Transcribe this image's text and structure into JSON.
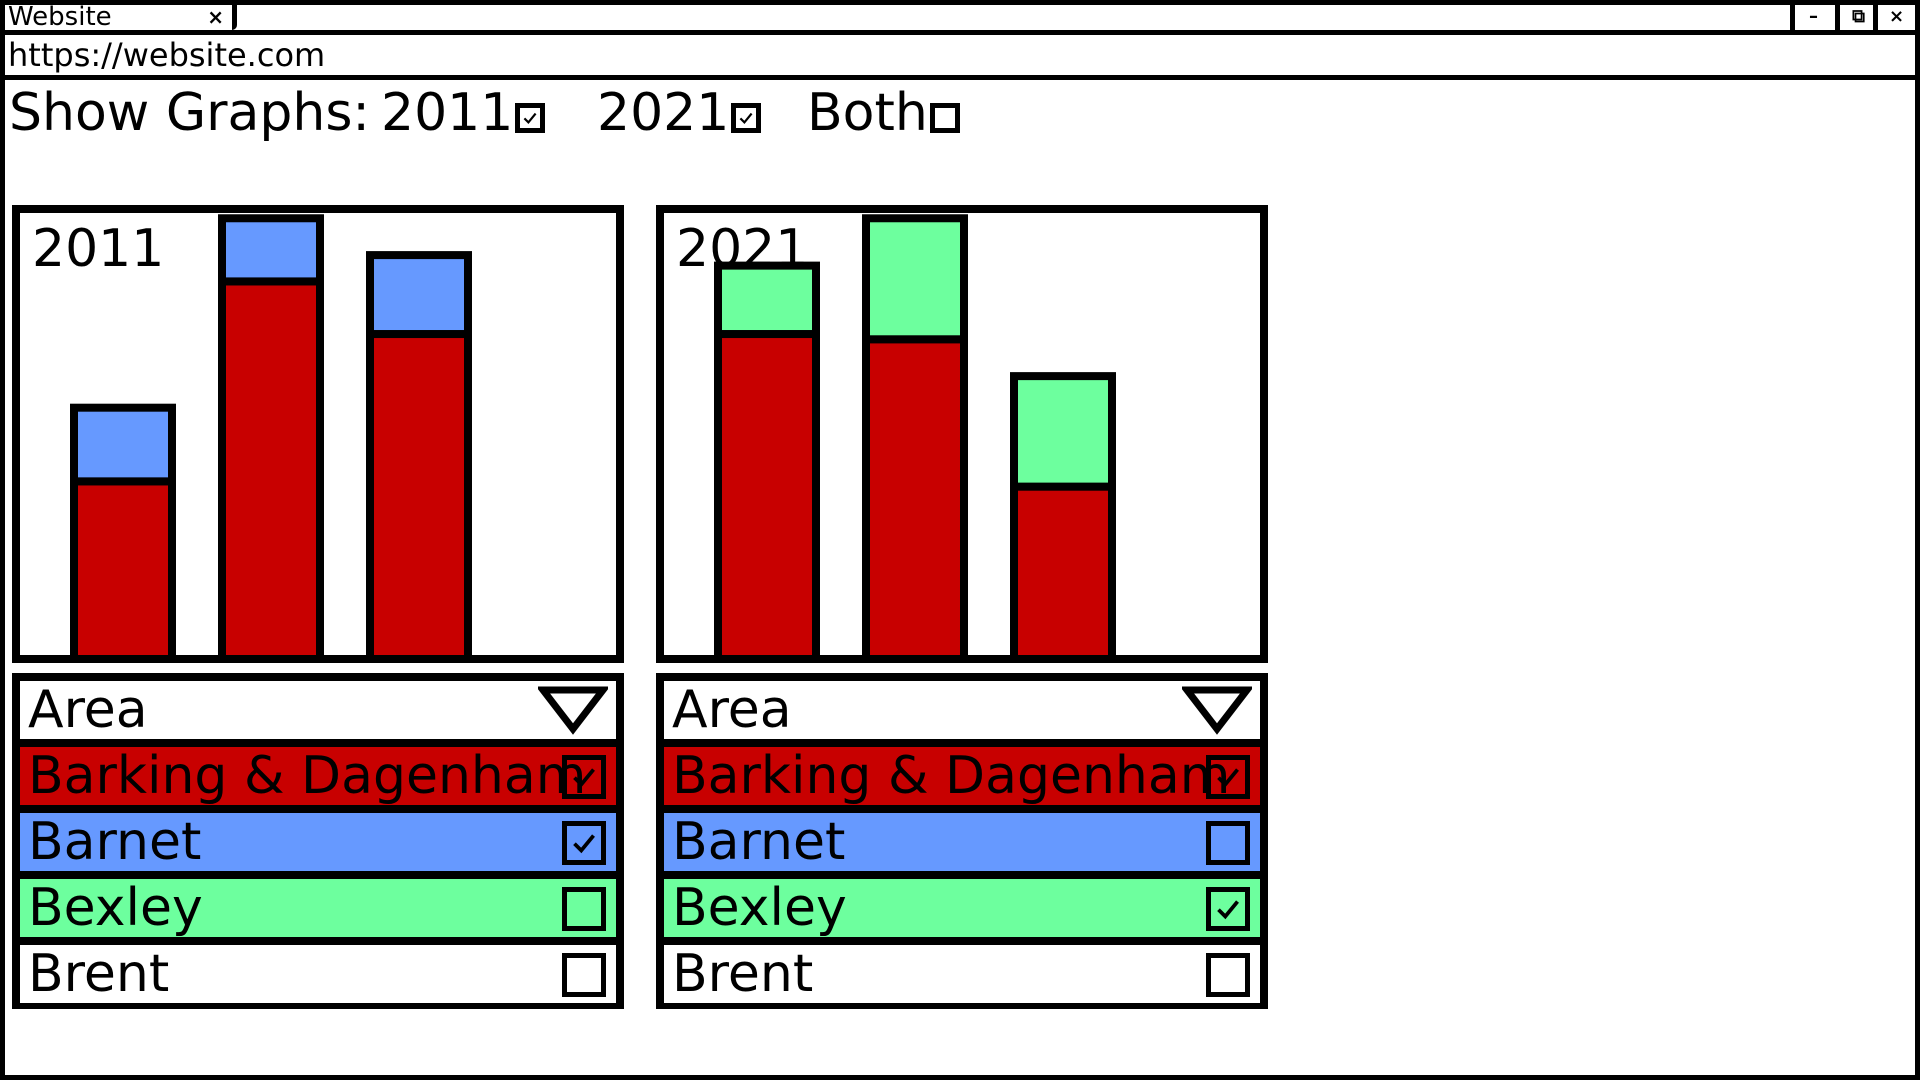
{
  "browser": {
    "tab_title": "Website",
    "tab_close": "×",
    "url": "https://website.com",
    "win_minimize": "–",
    "win_restore": "⧉",
    "win_close": "×"
  },
  "show_graphs": {
    "label": "Show Graphs:",
    "options": [
      {
        "label": "2011",
        "checked": true
      },
      {
        "label": "2021",
        "checked": true
      },
      {
        "label": "Both",
        "checked": false
      }
    ]
  },
  "colors": {
    "barking": "#c80000",
    "barnet": "#6699ff",
    "bexley": "#6dff9e",
    "brent": "#ffffff"
  },
  "panels": [
    {
      "title": "2011",
      "dropdown_label": "Area",
      "areas": [
        {
          "name": "Barking & Dagenham",
          "checked": true,
          "color": "#c80000"
        },
        {
          "name": "Barnet",
          "checked": true,
          "color": "#6699ff"
        },
        {
          "name": "Bexley",
          "checked": false,
          "color": "#6dff9e"
        },
        {
          "name": "Brent",
          "checked": false,
          "color": "#ffffff"
        }
      ],
      "chart_data": {
        "type": "bar",
        "stacked": true,
        "series": [
          {
            "values": [
              165,
              355,
              305
            ],
            "color": "#c80000"
          },
          {
            "values": [
              70,
              60,
              75
            ],
            "color": "#6699ff"
          }
        ],
        "ymax": 420
      }
    },
    {
      "title": "2021",
      "dropdown_label": "Area",
      "areas": [
        {
          "name": "Barking & Dagenham",
          "checked": true,
          "color": "#c80000"
        },
        {
          "name": "Barnet",
          "checked": false,
          "color": "#6699ff"
        },
        {
          "name": "Bexley",
          "checked": true,
          "color": "#6dff9e"
        },
        {
          "name": "Brent",
          "checked": false,
          "color": "#ffffff"
        }
      ],
      "chart_data": {
        "type": "bar",
        "stacked": true,
        "series": [
          {
            "values": [
              305,
              300,
              160
            ],
            "color": "#c80000"
          },
          {
            "values": [
              65,
              115,
              105
            ],
            "color": "#6dff9e"
          }
        ],
        "ymax": 420
      }
    }
  ]
}
